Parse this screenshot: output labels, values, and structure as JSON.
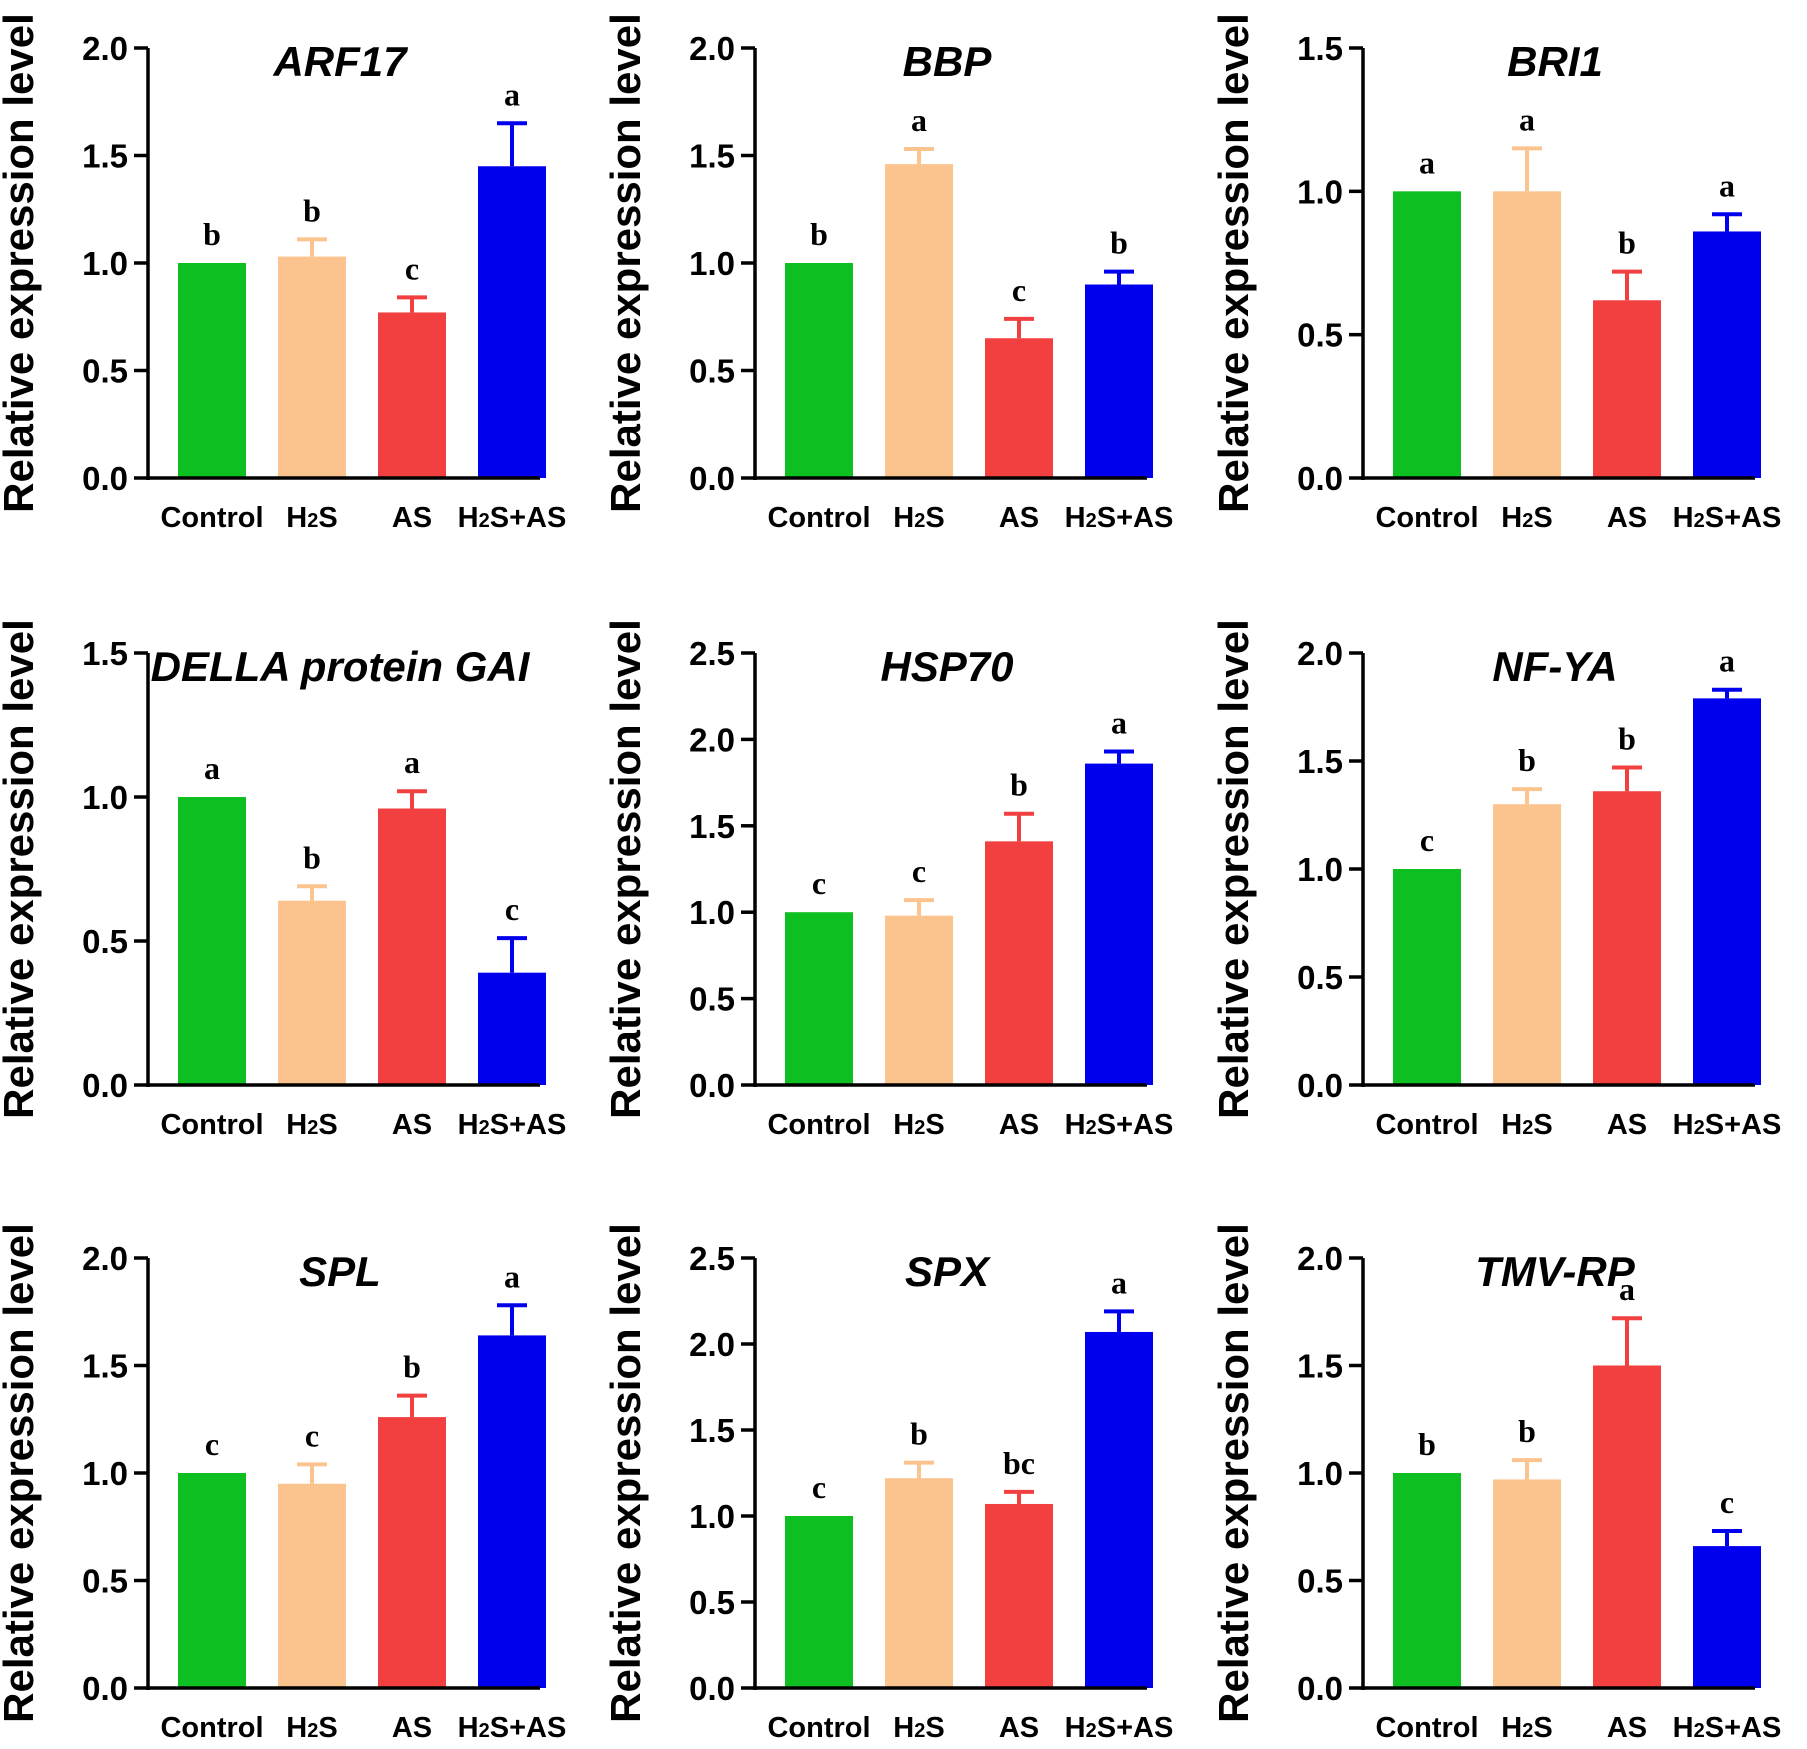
{
  "chart_data": [
    {
      "type": "bar",
      "title": "ARF17",
      "ylabel": "Relative expression level",
      "xlabel": "",
      "categories": [
        "Control",
        "H2S",
        "AS",
        "H2S+AS"
      ],
      "values": [
        1.0,
        1.03,
        0.77,
        1.45
      ],
      "errors": [
        0.0,
        0.08,
        0.07,
        0.2
      ],
      "significance": [
        "b",
        "b",
        "c",
        "a"
      ],
      "ylim": [
        0,
        2.0
      ],
      "yticks": [
        "0.0",
        "0.5",
        "1.0",
        "1.5",
        "2.0"
      ]
    },
    {
      "type": "bar",
      "title": "BBP",
      "ylabel": "Relative expression level",
      "xlabel": "",
      "categories": [
        "Control",
        "H2S",
        "AS",
        "H2S+AS"
      ],
      "values": [
        1.0,
        1.46,
        0.65,
        0.9
      ],
      "errors": [
        0.0,
        0.07,
        0.09,
        0.06
      ],
      "significance": [
        "b",
        "a",
        "c",
        "b"
      ],
      "ylim": [
        0,
        2.0
      ],
      "yticks": [
        "0.0",
        "0.5",
        "1.0",
        "1.5",
        "2.0"
      ]
    },
    {
      "type": "bar",
      "title": "BRI1",
      "ylabel": "Relative expression level",
      "xlabel": "",
      "categories": [
        "Control",
        "H2S",
        "AS",
        "H2S+AS"
      ],
      "values": [
        1.0,
        1.0,
        0.62,
        0.86
      ],
      "errors": [
        0.0,
        0.15,
        0.1,
        0.06
      ],
      "significance": [
        "a",
        "a",
        "b",
        "a"
      ],
      "ylim": [
        0,
        1.5
      ],
      "yticks": [
        "0.0",
        "0.5",
        "1.0",
        "1.5"
      ]
    },
    {
      "type": "bar",
      "title": "DELLA protein GAI",
      "ylabel": "Relative expression level",
      "xlabel": "",
      "categories": [
        "Control",
        "H2S",
        "AS",
        "H2S+AS"
      ],
      "values": [
        1.0,
        0.64,
        0.96,
        0.39
      ],
      "errors": [
        0.0,
        0.05,
        0.06,
        0.12
      ],
      "significance": [
        "a",
        "b",
        "a",
        "c"
      ],
      "ylim": [
        0,
        1.5
      ],
      "yticks": [
        "0.0",
        "0.5",
        "1.0",
        "1.5"
      ]
    },
    {
      "type": "bar",
      "title": "HSP70",
      "ylabel": "Relative expression level",
      "xlabel": "",
      "categories": [
        "Control",
        "H2S",
        "AS",
        "H2S+AS"
      ],
      "values": [
        1.0,
        0.98,
        1.41,
        1.86
      ],
      "errors": [
        0.0,
        0.09,
        0.16,
        0.07
      ],
      "significance": [
        "c",
        "c",
        "b",
        "a"
      ],
      "ylim": [
        0,
        2.5
      ],
      "yticks": [
        "0.0",
        "0.5",
        "1.0",
        "1.5",
        "2.0",
        "2.5"
      ]
    },
    {
      "type": "bar",
      "title": "NF-YA",
      "ylabel": "Relative expression level",
      "xlabel": "",
      "categories": [
        "Control",
        "H2S",
        "AS",
        "H2S+AS"
      ],
      "values": [
        1.0,
        1.3,
        1.36,
        1.79
      ],
      "errors": [
        0.0,
        0.07,
        0.11,
        0.04
      ],
      "significance": [
        "c",
        "b",
        "b",
        "a"
      ],
      "ylim": [
        0,
        2.0
      ],
      "yticks": [
        "0.0",
        "0.5",
        "1.0",
        "1.5",
        "2.0"
      ]
    },
    {
      "type": "bar",
      "title": "SPL",
      "ylabel": "Relative expression level",
      "xlabel": "",
      "categories": [
        "Control",
        "H2S",
        "AS",
        "H2S+AS"
      ],
      "values": [
        1.0,
        0.95,
        1.26,
        1.64
      ],
      "errors": [
        0.0,
        0.09,
        0.1,
        0.14
      ],
      "significance": [
        "c",
        "c",
        "b",
        "a"
      ],
      "ylim": [
        0,
        2.0
      ],
      "yticks": [
        "0.0",
        "0.5",
        "1.0",
        "1.5",
        "2.0"
      ]
    },
    {
      "type": "bar",
      "title": "SPX",
      "ylabel": "Relative expression level",
      "xlabel": "",
      "categories": [
        "Control",
        "H2S",
        "AS",
        "H2S+AS"
      ],
      "values": [
        1.0,
        1.22,
        1.07,
        2.07
      ],
      "errors": [
        0.0,
        0.09,
        0.07,
        0.12
      ],
      "significance": [
        "c",
        "b",
        "bc",
        "a"
      ],
      "ylim": [
        0,
        2.5
      ],
      "yticks": [
        "0.0",
        "0.5",
        "1.0",
        "1.5",
        "2.0",
        "2.5"
      ]
    },
    {
      "type": "bar",
      "title": "TMV-RP",
      "ylabel": "Relative expression level",
      "xlabel": "",
      "categories": [
        "Control",
        "H2S",
        "AS",
        "H2S+AS"
      ],
      "values": [
        1.0,
        0.97,
        1.5,
        0.66
      ],
      "errors": [
        0.0,
        0.09,
        0.22,
        0.07
      ],
      "significance": [
        "b",
        "b",
        "a",
        "c"
      ],
      "ylim": [
        0,
        2.0
      ],
      "yticks": [
        "0.0",
        "0.5",
        "1.0",
        "1.5",
        "2.0"
      ]
    }
  ],
  "colors": [
    "#0dbf21",
    "#fbc48e",
    "#f23f3f",
    "#0000ee"
  ]
}
